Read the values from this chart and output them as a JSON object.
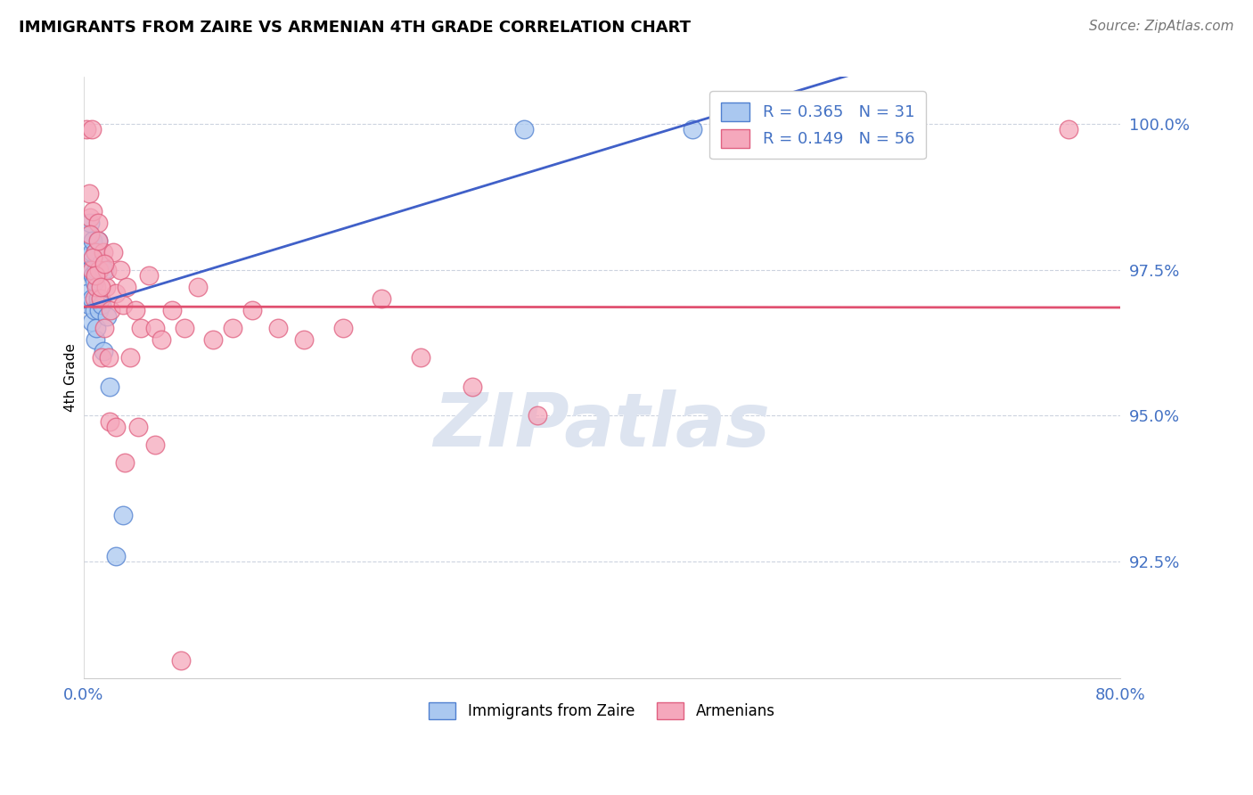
{
  "title": "IMMIGRANTS FROM ZAIRE VS ARMENIAN 4TH GRADE CORRELATION CHART",
  "source_text": "Source: ZipAtlas.com",
  "ylabel": "4th Grade",
  "ytick_labels": [
    "92.5%",
    "95.0%",
    "97.5%",
    "100.0%"
  ],
  "ytick_values": [
    0.925,
    0.95,
    0.975,
    1.0
  ],
  "xlim": [
    0.0,
    0.8
  ],
  "ylim": [
    0.905,
    1.008
  ],
  "blue_color": "#aac8f0",
  "pink_color": "#f5a8bc",
  "trendline_blue": "#4060c8",
  "trendline_pink": "#e05070",
  "blue_color_edge": "#5080d0",
  "pink_color_edge": "#e06080",
  "watermark_color": "#dde4f0",
  "tick_color": "#4472c4",
  "legend_blue_r": "R = 0.365",
  "legend_blue_n": "N = 31",
  "legend_pink_r": "R = 0.149",
  "legend_pink_n": "N = 56",
  "blue_x": [
    0.002,
    0.003,
    0.003,
    0.004,
    0.004,
    0.005,
    0.005,
    0.006,
    0.006,
    0.006,
    0.007,
    0.007,
    0.008,
    0.008,
    0.009,
    0.009,
    0.01,
    0.01,
    0.011,
    0.011,
    0.012,
    0.013,
    0.014,
    0.015,
    0.016,
    0.018,
    0.02,
    0.025,
    0.03,
    0.34,
    0.47
  ],
  "blue_y": [
    0.977,
    0.971,
    0.981,
    0.975,
    0.969,
    0.983,
    0.975,
    0.97,
    0.978,
    0.966,
    0.974,
    0.98,
    0.968,
    0.973,
    0.978,
    0.963,
    0.975,
    0.965,
    0.98,
    0.97,
    0.968,
    0.976,
    0.969,
    0.961,
    0.975,
    0.967,
    0.955,
    0.926,
    0.933,
    0.999,
    0.999
  ],
  "pink_x": [
    0.002,
    0.004,
    0.005,
    0.006,
    0.006,
    0.007,
    0.008,
    0.009,
    0.01,
    0.011,
    0.012,
    0.013,
    0.014,
    0.015,
    0.016,
    0.017,
    0.018,
    0.019,
    0.021,
    0.023,
    0.025,
    0.028,
    0.03,
    0.033,
    0.036,
    0.04,
    0.044,
    0.05,
    0.055,
    0.06,
    0.068,
    0.078,
    0.088,
    0.1,
    0.115,
    0.13,
    0.15,
    0.17,
    0.2,
    0.23,
    0.26,
    0.3,
    0.35,
    0.005,
    0.007,
    0.009,
    0.011,
    0.013,
    0.016,
    0.02,
    0.025,
    0.032,
    0.042,
    0.055,
    0.075,
    0.76
  ],
  "pink_y": [
    0.999,
    0.988,
    0.984,
    0.999,
    0.975,
    0.985,
    0.97,
    0.978,
    0.972,
    0.983,
    0.975,
    0.97,
    0.96,
    0.978,
    0.965,
    0.972,
    0.975,
    0.96,
    0.968,
    0.978,
    0.971,
    0.975,
    0.969,
    0.972,
    0.96,
    0.968,
    0.965,
    0.974,
    0.965,
    0.963,
    0.968,
    0.965,
    0.972,
    0.963,
    0.965,
    0.968,
    0.965,
    0.963,
    0.965,
    0.97,
    0.96,
    0.955,
    0.95,
    0.981,
    0.977,
    0.974,
    0.98,
    0.972,
    0.976,
    0.949,
    0.948,
    0.942,
    0.948,
    0.945,
    0.908,
    0.999
  ]
}
